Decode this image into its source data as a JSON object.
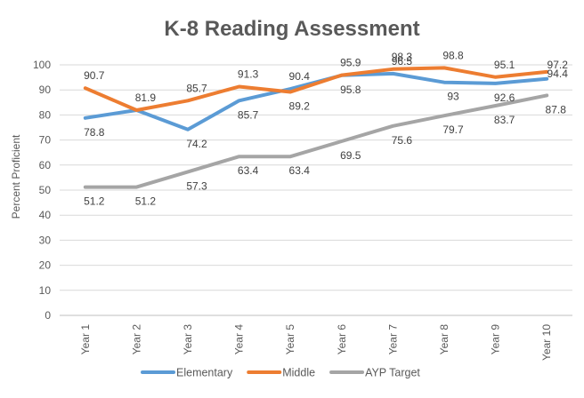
{
  "chart_data": {
    "type": "line",
    "title": "K-8 Reading Assessment",
    "xlabel": "",
    "ylabel": "Percent Proficient",
    "ylim": [
      0,
      100
    ],
    "yticks": [
      0,
      10,
      20,
      30,
      40,
      50,
      60,
      70,
      80,
      90,
      100
    ],
    "grid": true,
    "legend_position": "bottom",
    "categories": [
      "Year 1",
      "Year 2",
      "Year 3",
      "Year 4",
      "Year 5",
      "Year 6",
      "Year 7",
      "Year 8",
      "Year 9",
      "Year 10"
    ],
    "series": [
      {
        "name": "Elementary",
        "color": "#5B9BD5",
        "values": [
          78.8,
          81.9,
          74.2,
          85.7,
          90.4,
          95.8,
          96.5,
          93,
          92.6,
          94.4
        ],
        "labels": [
          "78.8",
          "81.9",
          "74.2",
          "85.7",
          "90.4",
          "95.8",
          "96.5",
          "93",
          "92.6",
          "94.4"
        ]
      },
      {
        "name": "Middle",
        "color": "#ED7D31",
        "values": [
          90.7,
          81.9,
          85.7,
          91.3,
          89.2,
          95.9,
          98.3,
          98.8,
          95.1,
          97.2
        ],
        "labels": [
          "90.7",
          "",
          "85.7",
          "91.3",
          "89.2",
          "95.9",
          "98.3",
          "98.8",
          "95.1",
          "97.2"
        ]
      },
      {
        "name": "AYP Target",
        "color": "#A5A5A5",
        "values": [
          51.2,
          51.2,
          57.3,
          63.4,
          63.4,
          69.5,
          75.6,
          79.7,
          83.7,
          87.8
        ],
        "labels": [
          "51.2",
          "51.2",
          "57.3",
          "63.4",
          "63.4",
          "69.5",
          "75.6",
          "79.7",
          "83.7",
          "87.8"
        ]
      }
    ]
  }
}
